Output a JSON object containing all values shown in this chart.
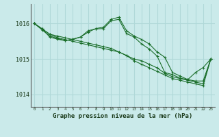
{
  "background_color": "#caeaea",
  "grid_color": "#b0d8d8",
  "line_color": "#1a6e2a",
  "title": "Graphe pression niveau de la mer (hPa)",
  "ylabel_ticks": [
    1014,
    1015,
    1016
  ],
  "xlim": [
    -0.5,
    23.5
  ],
  "ylim": [
    1013.65,
    1016.55
  ],
  "series": [
    {
      "x": [
        0,
        1,
        2,
        3,
        4,
        5,
        6,
        7,
        8,
        9,
        10,
        11,
        12,
        13,
        14,
        15,
        16,
        17,
        18,
        19,
        20,
        21,
        22,
        23
      ],
      "y": [
        1016.0,
        1015.85,
        1015.7,
        1015.6,
        1015.55,
        1015.5,
        1015.45,
        1015.4,
        1015.35,
        1015.3,
        1015.25,
        1015.2,
        1015.1,
        1015.0,
        1014.95,
        1014.85,
        1014.75,
        1014.6,
        1014.5,
        1014.45,
        1014.4,
        1014.35,
        1014.3,
        1015.0
      ]
    },
    {
      "x": [
        0,
        1,
        2,
        3,
        4,
        5,
        6,
        7,
        8,
        9,
        10,
        11,
        12,
        13,
        14,
        15,
        16,
        17,
        18,
        19,
        20,
        21,
        22,
        23
      ],
      "y": [
        1016.0,
        1015.85,
        1015.7,
        1015.65,
        1015.6,
        1015.55,
        1015.5,
        1015.45,
        1015.4,
        1015.35,
        1015.3,
        1015.2,
        1015.1,
        1014.95,
        1014.85,
        1014.75,
        1014.65,
        1014.55,
        1014.45,
        1014.4,
        1014.35,
        1014.3,
        1014.25,
        1015.0
      ]
    },
    {
      "x": [
        0,
        1,
        2,
        3,
        4,
        5,
        6,
        7,
        8,
        9,
        10,
        11,
        12,
        13,
        14,
        15,
        16,
        17,
        18,
        19,
        20,
        21,
        22,
        23
      ],
      "y": [
        1016.0,
        1015.82,
        1015.65,
        1015.58,
        1015.52,
        1015.56,
        1015.62,
        1015.76,
        1015.86,
        1015.9,
        1016.12,
        1016.18,
        1015.8,
        1015.65,
        1015.55,
        1015.42,
        1015.2,
        1015.05,
        1014.62,
        1014.52,
        1014.42,
        1014.38,
        1014.38,
        1015.0
      ]
    },
    {
      "x": [
        0,
        1,
        2,
        3,
        4,
        5,
        6,
        7,
        8,
        9,
        10,
        11,
        12,
        13,
        14,
        15,
        16,
        17,
        18,
        19,
        20,
        21,
        22,
        23
      ],
      "y": [
        1016.0,
        1015.85,
        1015.62,
        1015.56,
        1015.52,
        1015.56,
        1015.62,
        1015.8,
        1015.85,
        1015.86,
        1016.08,
        1016.12,
        1015.72,
        1015.62,
        1015.42,
        1015.28,
        1015.08,
        1014.62,
        1014.56,
        1014.46,
        1014.42,
        1014.62,
        1014.76,
        1015.0
      ]
    }
  ]
}
